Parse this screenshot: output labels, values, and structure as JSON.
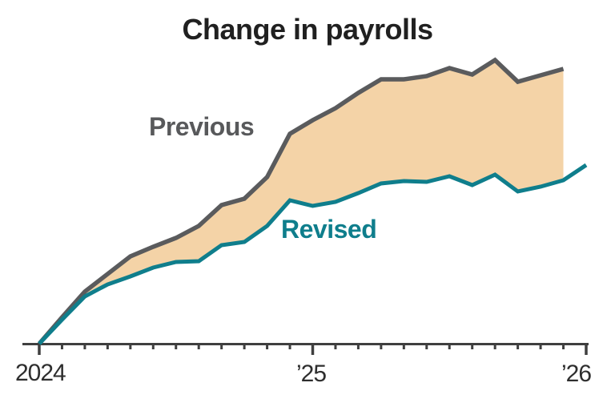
{
  "chart_data": {
    "type": "area",
    "title": "Change in payrolls",
    "subtitle": "",
    "y_axis": "none shown (values are relative, estimated in pixels above baseline)",
    "x_axis": {
      "tick_cadence": "monthly",
      "major_tick_labels": [
        "2024",
        "’25",
        "’26"
      ],
      "major_tick_month_indexes": [
        0,
        12,
        24
      ]
    },
    "legend_position": "inline labels on chart",
    "grid": false,
    "band_fill": "#f4d3a7",
    "axis_color": "#3f3f3f",
    "series": [
      {
        "name": "Previous",
        "color": "#5a5b5d",
        "start_month": "2024 (first tick)",
        "values": [
          1,
          34,
          66,
          88,
          110,
          122,
          133,
          148,
          174,
          182,
          209,
          263,
          280,
          295,
          314,
          331,
          331,
          335,
          345,
          337,
          355,
          328,
          336,
          344
        ]
      },
      {
        "name": "Revised",
        "color": "#0f7e8c",
        "start_month": "2024 (first tick)",
        "values": [
          1,
          31,
          60,
          75,
          85,
          96,
          103,
          104,
          124,
          128,
          148,
          180,
          173,
          178,
          189,
          201,
          204,
          203,
          210,
          199,
          212,
          191,
          197,
          205,
          224
        ]
      }
    ]
  }
}
